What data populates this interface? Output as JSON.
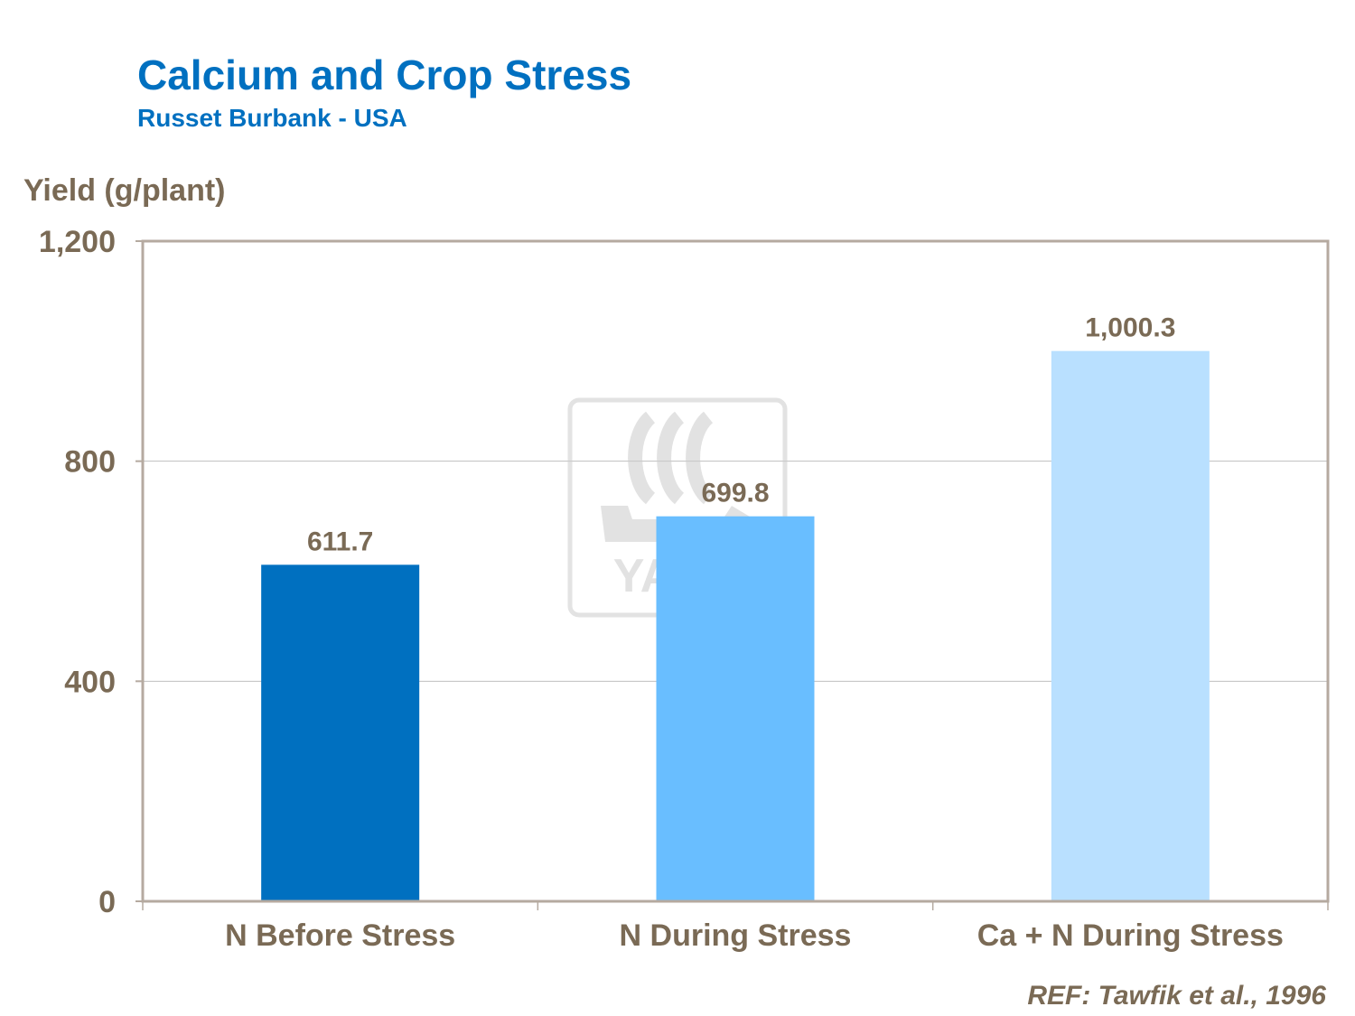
{
  "chart_data": {
    "type": "bar",
    "title": "Calcium and Crop Stress",
    "subtitle": "Russet Burbank - USA",
    "ylabel": "Yield (g/plant)",
    "xlabel": "",
    "categories": [
      "N Before Stress",
      "N During Stress",
      "Ca + N During Stress"
    ],
    "values": [
      611.7,
      699.8,
      1000.3
    ],
    "data_labels": [
      "611.7",
      "699.8",
      "1,000.3"
    ],
    "bar_colors": [
      "#0070C0",
      "#69BEFF",
      "#B9E0FF"
    ],
    "ylim": [
      0,
      1200
    ],
    "yticks": [
      0,
      400,
      800,
      1200
    ],
    "ytick_labels": [
      "0",
      "400",
      "800",
      "1,200"
    ],
    "grid": true,
    "legend": "none"
  },
  "reference": "REF: Tawfik et al., 1996",
  "watermark": {
    "text": "YARA",
    "color": "#D9D9D9"
  },
  "colors": {
    "title": "#0070C0",
    "text": "#7A6A55",
    "axis": "#B5AAA0",
    "grid": "#BFBFBF"
  }
}
